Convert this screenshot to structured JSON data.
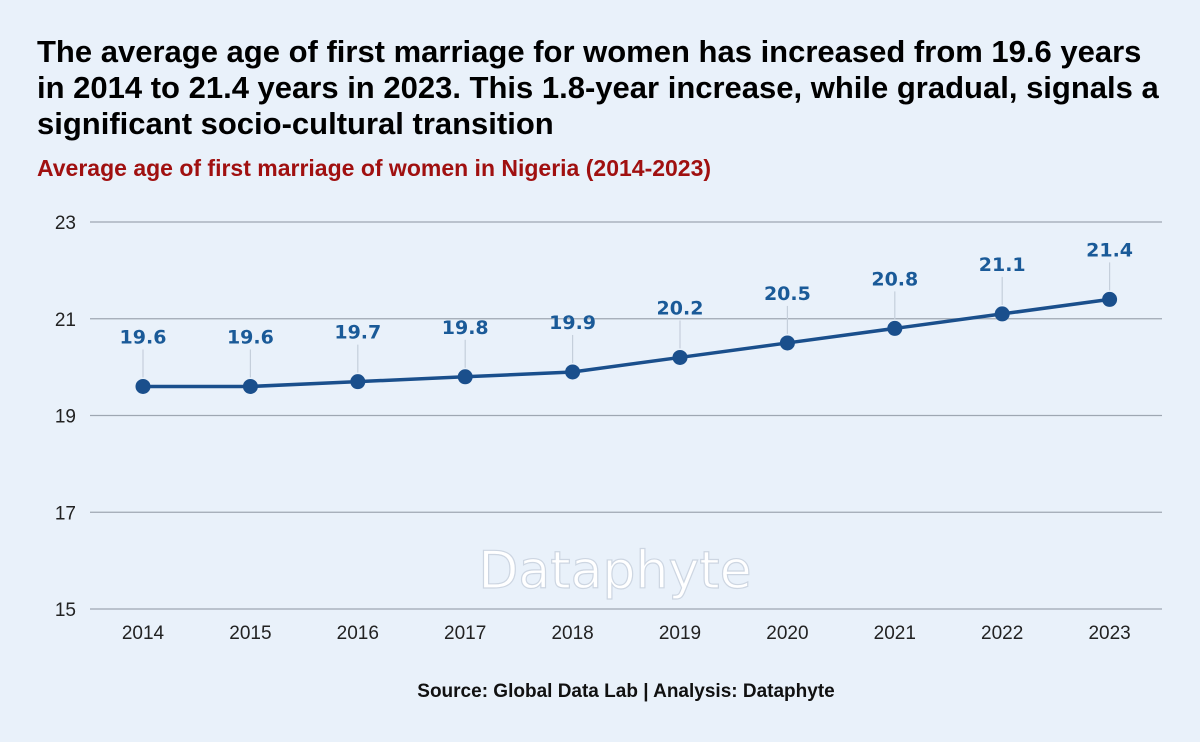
{
  "headline": "The average age of first marriage for women has increased from 19.6 years in 2014 to 21.4 years in 2023. This 1.8-year increase, while gradual, signals a significant socio-cultural transition",
  "watermark": "Dataphyte",
  "source": "Source: Global Data Lab | Analysis: Dataphyte",
  "colors": {
    "background": "#e9f1fa",
    "line": "#1a4f8c",
    "label": "#1a5a98",
    "subtitle": "#a01010",
    "grid": "#9ea7b2"
  },
  "chart_data": {
    "type": "line",
    "title": "Average age of first marriage of women in Nigeria (2014-2023)",
    "xlabel": "",
    "ylabel": "",
    "ylim": [
      15,
      23
    ],
    "yticks": [
      "15",
      "17",
      "19",
      "21",
      "23"
    ],
    "categories": [
      "2014",
      "2015",
      "2016",
      "2017",
      "2018",
      "2019",
      "2020",
      "2021",
      "2022",
      "2023"
    ],
    "series": [
      {
        "values": [
          19.6,
          19.6,
          19.7,
          19.8,
          19.9,
          20.2,
          20.5,
          20.8,
          21.1,
          21.4
        ],
        "labels": [
          "19.6",
          "19.6",
          "19.7",
          "19.8",
          "19.9",
          "20.2",
          "20.5",
          "20.8",
          "21.1",
          "21.4"
        ]
      }
    ],
    "grid": true,
    "legend": "none"
  }
}
